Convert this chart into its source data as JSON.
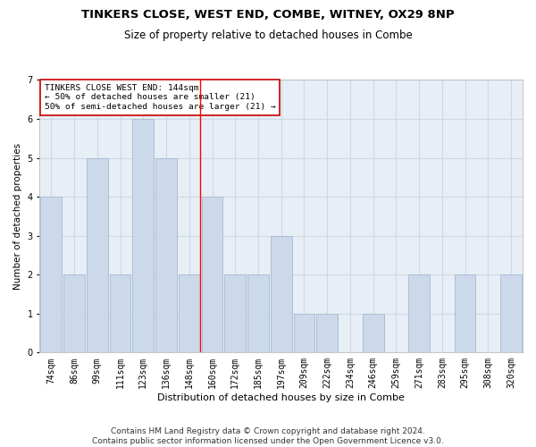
{
  "title1": "TINKERS CLOSE, WEST END, COMBE, WITNEY, OX29 8NP",
  "title2": "Size of property relative to detached houses in Combe",
  "xlabel": "Distribution of detached houses by size in Combe",
  "ylabel": "Number of detached properties",
  "categories": [
    "74sqm",
    "86sqm",
    "99sqm",
    "111sqm",
    "123sqm",
    "136sqm",
    "148sqm",
    "160sqm",
    "172sqm",
    "185sqm",
    "197sqm",
    "209sqm",
    "222sqm",
    "234sqm",
    "246sqm",
    "259sqm",
    "271sqm",
    "283sqm",
    "295sqm",
    "308sqm",
    "320sqm"
  ],
  "values": [
    4,
    2,
    5,
    2,
    6,
    5,
    2,
    4,
    2,
    2,
    3,
    1,
    1,
    0,
    1,
    0,
    2,
    0,
    2,
    0,
    2
  ],
  "bar_color": "#ccd9ea",
  "bar_edgecolor": "#a8bfd8",
  "grid_color": "#d0d8e4",
  "bg_color": "#e8eef5",
  "red_line_index": 6,
  "annotation_text": "TINKERS CLOSE WEST END: 144sqm\n← 50% of detached houses are smaller (21)\n50% of semi-detached houses are larger (21) →",
  "annotation_box_edgecolor": "#cc0000",
  "annotation_box_facecolor": "#ffffff",
  "footer": "Contains HM Land Registry data © Crown copyright and database right 2024.\nContains public sector information licensed under the Open Government Licence v3.0.",
  "ylim": [
    0,
    7
  ],
  "yticks": [
    0,
    1,
    2,
    3,
    4,
    5,
    6,
    7
  ],
  "title1_fontsize": 9.5,
  "title2_fontsize": 8.5,
  "xlabel_fontsize": 8,
  "ylabel_fontsize": 7.5,
  "tick_fontsize": 7,
  "footer_fontsize": 6.5,
  "ann_fontsize": 6.8
}
